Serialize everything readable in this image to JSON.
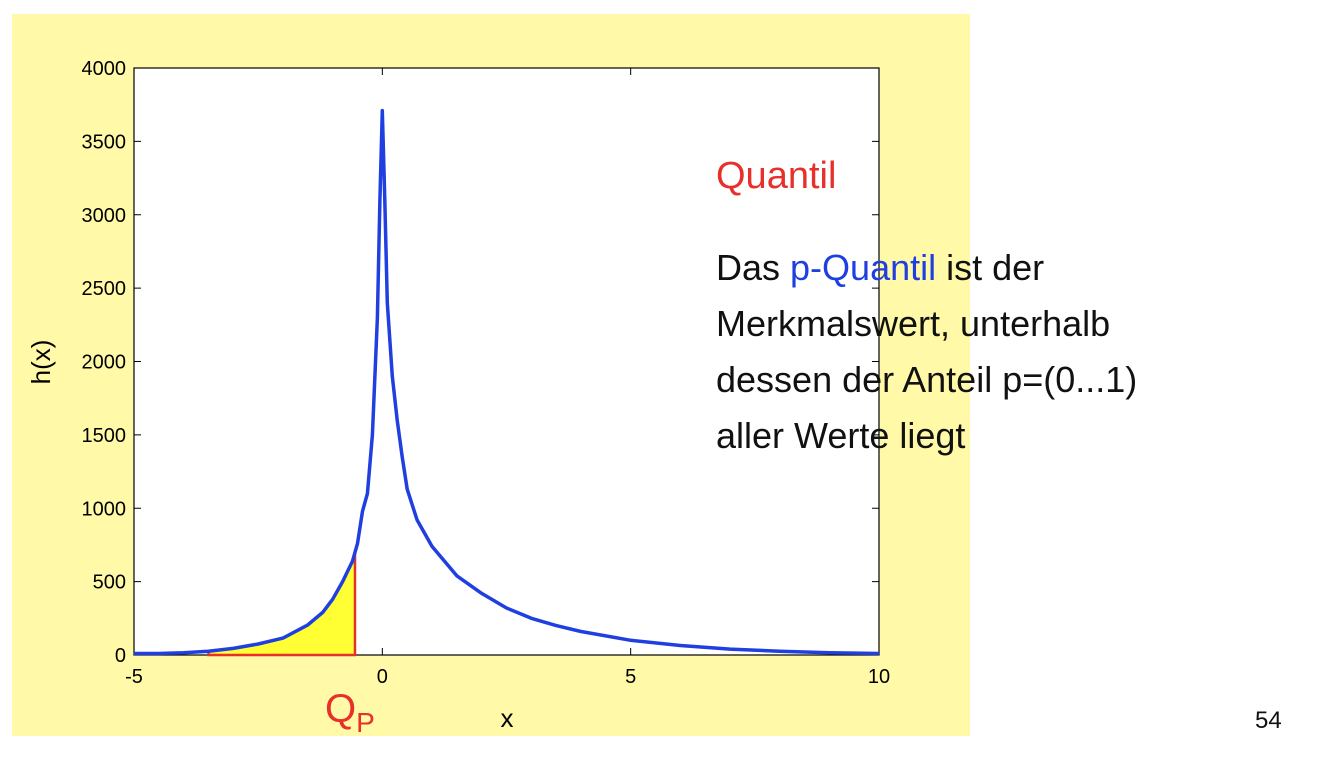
{
  "slide": {
    "heading": "Quantil",
    "text_before": "Das ",
    "text_highlight": "p-Quantil",
    "line1_after": " ist der",
    "line2": "Merkmalswert, unterhalb",
    "line3": "dessen der Anteil p=(0...1)",
    "line4": "aller Werte liegt",
    "page_number": "54",
    "colors": {
      "heading": "#e8302a",
      "highlight": "#1f3fe0",
      "background": "#fff9a8"
    }
  },
  "chart_data": {
    "type": "line",
    "xlabel": "x",
    "ylabel": "h(x)",
    "xlim": [
      -5,
      10
    ],
    "ylim": [
      0,
      4000
    ],
    "xticks": [
      -5,
      0,
      5,
      10
    ],
    "yticks": [
      0,
      500,
      1000,
      1500,
      2000,
      2500,
      3000,
      3500,
      4000
    ],
    "grid": false,
    "series": [
      {
        "color": "#1f3fe0",
        "x": [
          -5,
          -4.5,
          -4,
          -3.5,
          -3,
          -2.5,
          -2,
          -1.5,
          -1.2,
          -1,
          -0.8,
          -0.6,
          -0.5,
          -0.4,
          -0.3,
          -0.2,
          -0.1,
          -0.05,
          0,
          0.05,
          0.1,
          0.2,
          0.3,
          0.4,
          0.5,
          0.7,
          1,
          1.5,
          2,
          2.5,
          3,
          3.5,
          4,
          5,
          6,
          7,
          8,
          9,
          10
        ],
        "y": [
          10,
          10,
          15,
          25,
          45,
          75,
          115,
          205,
          290,
          380,
          500,
          640,
          760,
          980,
          1100,
          1500,
          2300,
          3100,
          3710,
          3100,
          2400,
          1900,
          1600,
          1350,
          1130,
          920,
          740,
          540,
          420,
          320,
          250,
          200,
          160,
          100,
          65,
          40,
          25,
          15,
          10
        ]
      }
    ],
    "quantile": {
      "label": "Q",
      "subscript": "P",
      "x": -0.55,
      "fill": "#ffff33",
      "edge": "#e8302a"
    }
  }
}
